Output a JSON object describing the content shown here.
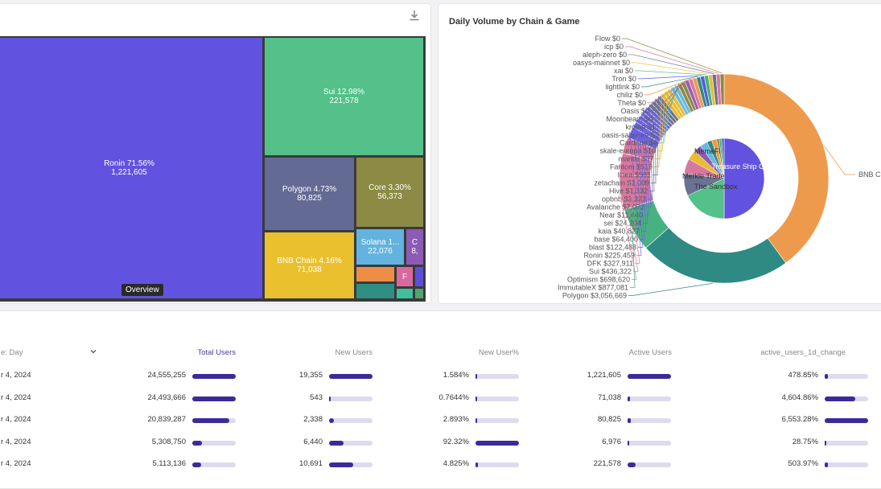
{
  "treemap": {
    "tooltip": "Overview",
    "tiles": [
      {
        "key": "ronin",
        "label": "Ronin 71.56%",
        "value": "1,221,605",
        "color": "#6153df"
      },
      {
        "key": "sui",
        "label": "Sui 12.98%",
        "value": "221,578",
        "color": "#53c189"
      },
      {
        "key": "polygon",
        "label": "Polygon 4.73%",
        "value": "80,825",
        "color": "#636a94"
      },
      {
        "key": "core",
        "label": "Core 3.30%",
        "value": "56,373",
        "color": "#8c8a45"
      },
      {
        "key": "bnb",
        "label": "BNB Chain 4.16%",
        "value": "71,038",
        "color": "#eac02e"
      },
      {
        "key": "solana",
        "label": "Solana 1...",
        "value": "22,076",
        "color": "#62b3dd"
      },
      {
        "key": "c",
        "label": "C",
        "value": "8,",
        "color": "#8d5ab6"
      },
      {
        "key": "f",
        "label": "F",
        "value": "",
        "color": "#d66a9f"
      },
      {
        "key": "orange",
        "label": "",
        "value": "",
        "color": "#ee8d45"
      },
      {
        "key": "teal",
        "label": "",
        "value": "",
        "color": "#2e8f82"
      },
      {
        "key": "blue-small",
        "label": "",
        "value": "",
        "color": "#5a50d8"
      },
      {
        "key": "teal-small",
        "label": "",
        "value": "",
        "color": "#3fbf9a"
      },
      {
        "key": "green-small",
        "label": "",
        "value": "",
        "color": "#52a36c"
      }
    ]
  },
  "donut": {
    "title": "Daily Volume by Chain & Game",
    "watermark": "Footprint Analytics",
    "outer": [
      {
        "name": "BNB Chain",
        "label": "BNB C",
        "value": 5200000,
        "color": "#ee9a4c"
      },
      {
        "name": "Polygon",
        "label": "Polygon $3,056,669",
        "value": 3056669,
        "color": "#2e8a83"
      },
      {
        "name": "ImmutableX",
        "label": "ImmutableX $877,081",
        "value": 877081,
        "color": "#47b27f"
      },
      {
        "name": "Optimism",
        "label": "Optimism $698,620",
        "value": 698620,
        "color": "#d9789f"
      },
      {
        "name": "Sui",
        "label": "Sui $436,322",
        "value": 436322,
        "color": "#d9789f"
      },
      {
        "name": "DFK",
        "label": "DFK $327,911",
        "value": 327911,
        "color": "#d9789f"
      },
      {
        "name": "Ronin",
        "label": "Ronin $225,459",
        "value": 225459,
        "color": "#6c63e0"
      },
      {
        "name": "blast",
        "label": "blast $122,488",
        "value": 122488,
        "color": "#6c63e0"
      },
      {
        "name": "base",
        "label": "base $64,400",
        "value": 64400,
        "color": "#6c63e0"
      },
      {
        "name": "kaia",
        "label": "kaia $40,827",
        "value": 40827,
        "color": "#6c63e0"
      },
      {
        "name": "sei",
        "label": "sei $24,204",
        "value": 24204,
        "color": "#6c63e0"
      },
      {
        "name": "Near",
        "label": "Near $11,440",
        "value": 11440,
        "color": "#6c63e0"
      },
      {
        "name": "Avalanche",
        "label": "Avalanche $7,072",
        "value": 7072,
        "color": "#6c63e0"
      },
      {
        "name": "opbnb",
        "label": "opbnb $3,323",
        "value": 3323,
        "color": "#6b7291"
      },
      {
        "name": "Hive",
        "label": "Hive $1,332",
        "value": 1332,
        "color": "#6b7291"
      },
      {
        "name": "zetachain",
        "label": "zetachain $1,009",
        "value": 1009,
        "color": "#6b7291"
      },
      {
        "name": "linea",
        "label": "linea $981",
        "value": 981,
        "color": "#6b7291"
      },
      {
        "name": "Fantom",
        "label": "Fantom $519",
        "value": 519,
        "color": "#e8bd2f"
      },
      {
        "name": "mantle",
        "label": "mantle $77",
        "value": 77,
        "color": "#e8bd2f"
      },
      {
        "name": "skale-europa",
        "label": "skale-europa $10",
        "value": 10,
        "color": "#e8bd2f"
      },
      {
        "name": "Cardano",
        "label": "Cardano $4",
        "value": 4,
        "color": "#69b9e0"
      },
      {
        "name": "oasis-sapphire",
        "label": "oasis-sapphire $3",
        "value": 3,
        "color": "#69b9e0"
      },
      {
        "name": "kroma",
        "label": "kroma $1",
        "value": 1,
        "color": "#8c8a45"
      },
      {
        "name": "Moonbeam",
        "label": "Moonbeam $0",
        "value": 0,
        "color": "#8c8a45"
      },
      {
        "name": "Oasis",
        "label": "Oasis $0",
        "value": 0,
        "color": "#9b59b6"
      },
      {
        "name": "Theta",
        "label": "Theta $0",
        "value": 0,
        "color": "#d9789f"
      },
      {
        "name": "chiliz",
        "label": "chiliz $0",
        "value": 0,
        "color": "#ee9a4c"
      },
      {
        "name": "lightlink",
        "label": "lightlink $0",
        "value": 0,
        "color": "#2e8a83"
      },
      {
        "name": "Tron",
        "label": "Tron $0",
        "value": 0,
        "color": "#5060d8"
      },
      {
        "name": "xai",
        "label": "xai $0",
        "value": 0,
        "color": "#47b27f"
      },
      {
        "name": "oasys-mainnet",
        "label": "oasys-mainnet $0",
        "value": 0,
        "color": "#e8bd2f"
      },
      {
        "name": "aleph-zero",
        "label": "aleph-zero $0",
        "value": 0,
        "color": "#6b7291"
      },
      {
        "name": "icp",
        "label": "icp $0",
        "value": 0,
        "color": "#d9789f"
      },
      {
        "name": "Flow",
        "label": "Flow $0",
        "value": 0,
        "color": "#8c8a45"
      }
    ],
    "inner_labels": [
      "MemeFi",
      "Treasure Ship Game",
      "Merkle Trade",
      "The Sandbox"
    ],
    "inner_colors": [
      "#6153df",
      "#53c189",
      "#6b7291",
      "#d9789f",
      "#e8bd2f",
      "#8d5ab6",
      "#69b9e0",
      "#2e8a83",
      "#ee9a4c",
      "#8c8a45",
      "#47b27f",
      "#5060d8"
    ]
  },
  "table": {
    "headers": [
      "e: Day",
      "Total Users",
      "New Users",
      "New User%",
      "Active Users",
      "active_users_1d_change"
    ],
    "rows": [
      {
        "date": "r 4, 2024",
        "total": "24,555,255",
        "total_f": 1.0,
        "new": "19,355",
        "new_f": 1.0,
        "pct": "1.584%",
        "pct_f": 0.03,
        "active": "1,221,605",
        "active_f": 1.0,
        "change": "478.85%",
        "change_f": 0.07
      },
      {
        "date": "r 4, 2024",
        "total": "24,493,666",
        "total_f": 1.0,
        "new": "543",
        "new_f": 0.03,
        "pct": "0.7644%",
        "pct_f": 0.02,
        "active": "71,038",
        "active_f": 0.06,
        "change": "4,604.86%",
        "change_f": 0.7
      },
      {
        "date": "r 4, 2024",
        "total": "20,839,287",
        "total_f": 0.85,
        "new": "2,338",
        "new_f": 0.12,
        "pct": "2.893%",
        "pct_f": 0.04,
        "active": "80,825",
        "active_f": 0.07,
        "change": "6,553.28%",
        "change_f": 1.0
      },
      {
        "date": "r 4, 2024",
        "total": "5,308,750",
        "total_f": 0.22,
        "new": "6,440",
        "new_f": 0.33,
        "pct": "92.32%",
        "pct_f": 1.0,
        "active": "6,976",
        "active_f": 0.02,
        "change": "28.75%",
        "change_f": 0.01
      },
      {
        "date": "r 4, 2024",
        "total": "5,113,136",
        "total_f": 0.21,
        "new": "10,691",
        "new_f": 0.55,
        "pct": "4.825%",
        "pct_f": 0.05,
        "active": "221,578",
        "active_f": 0.18,
        "change": "503.97%",
        "change_f": 0.08
      }
    ]
  }
}
